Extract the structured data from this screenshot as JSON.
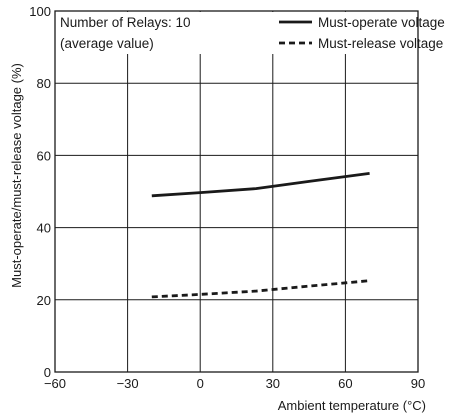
{
  "chart_data": {
    "type": "line",
    "title": "",
    "xlabel": "Ambient temperature (°C)",
    "ylabel": "Must-operate/must-release voltage (%)",
    "xlim": [
      -60,
      90
    ],
    "ylim": [
      0,
      100
    ],
    "xticks": [
      -60,
      -30,
      0,
      30,
      60,
      90
    ],
    "xtick_labels": [
      "−60",
      "−30",
      "0",
      "30",
      "60",
      "90"
    ],
    "yticks": [
      0,
      20,
      40,
      60,
      80,
      100
    ],
    "ytick_labels": [
      "0",
      "20",
      "40",
      "60",
      "80",
      "100"
    ],
    "grid": true,
    "legend_position": "top-right",
    "annotation": [
      "Number of Relays: 10",
      "(average value)"
    ],
    "series": [
      {
        "name": "Must-operate voltage",
        "line_style": "solid",
        "x": [
          -20,
          0,
          23,
          45,
          70
        ],
        "y": [
          48.8,
          49.7,
          50.8,
          52.8,
          55.0
        ]
      },
      {
        "name": "Must-release voltage",
        "line_style": "dashed",
        "x": [
          -20,
          0,
          23,
          45,
          70
        ],
        "y": [
          20.8,
          21.5,
          22.4,
          23.8,
          25.3
        ]
      }
    ]
  }
}
